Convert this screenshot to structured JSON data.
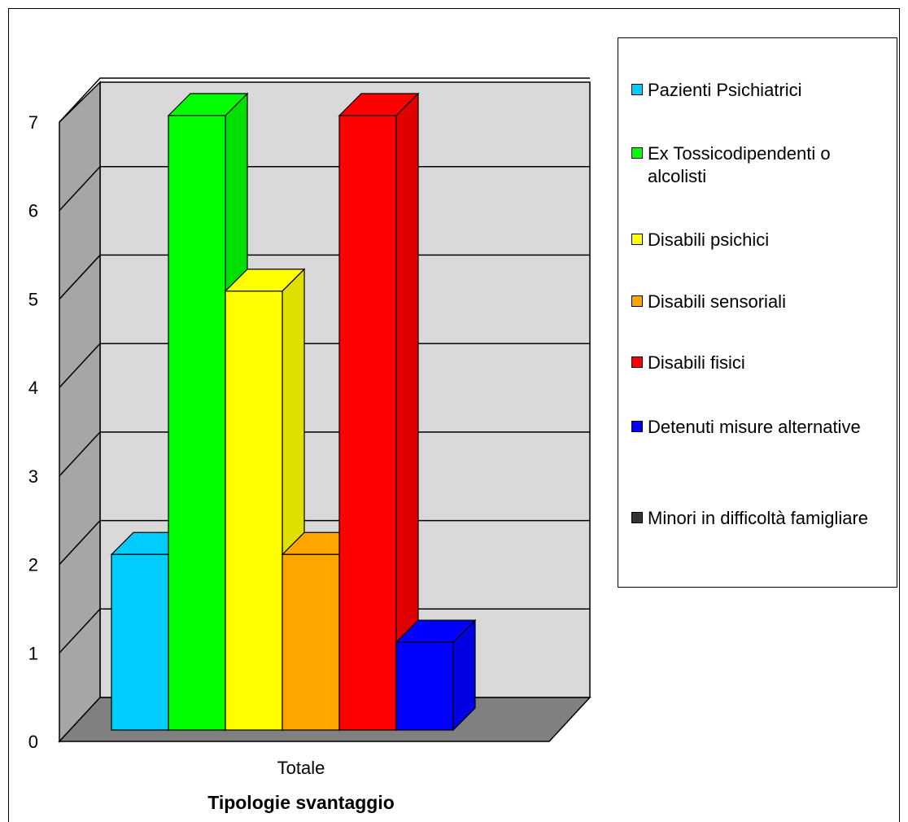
{
  "chart_data": {
    "type": "bar",
    "categories": [
      "Totale"
    ],
    "xlabel": "Tipologie svantaggio",
    "ylabel": "",
    "ylim": [
      0,
      7
    ],
    "yticks": [
      0,
      1,
      2,
      3,
      4,
      5,
      6,
      7
    ],
    "grid": true,
    "legend_position": "right",
    "series": [
      {
        "name": "Pazienti Psichiatrici",
        "values": [
          2
        ],
        "color": "#00ccff"
      },
      {
        "name": "Ex Tossicodipendenti o alcolisti",
        "values": [
          7
        ],
        "color": "#00ff00"
      },
      {
        "name": "Disabili psichici",
        "values": [
          5
        ],
        "color": "#ffff00"
      },
      {
        "name": "Disabili sensoriali",
        "values": [
          2
        ],
        "color": "#ffa500"
      },
      {
        "name": "Disabili fisici",
        "values": [
          7
        ],
        "color": "#ff0000"
      },
      {
        "name": "Detenuti misure alternative",
        "values": [
          1
        ],
        "color": "#0000ff"
      },
      {
        "name": "Minori in difficoltà famigliare",
        "values": [
          0
        ],
        "color": "#333333"
      }
    ]
  }
}
